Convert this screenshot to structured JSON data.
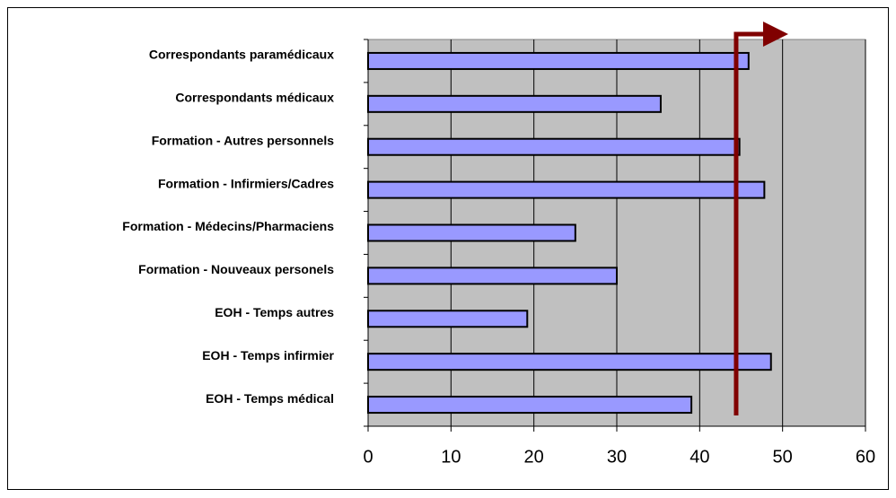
{
  "chart_data": {
    "type": "barh",
    "categories": [
      "Correspondants paramédicaux",
      "Correspondants médicaux",
      "Formation - Autres personnels",
      "Formation - Infirmiers/Cadres",
      "Formation - Médecins/Pharmaciens",
      "Formation - Nouveaux personels",
      "EOH - Temps autres",
      "EOH - Temps infirmier",
      "EOH - Temps médical"
    ],
    "values": [
      45.9,
      35.3,
      44.8,
      47.8,
      25,
      30,
      19.2,
      48.6,
      39
    ],
    "color": "#9999ff",
    "xlim": [
      0,
      60
    ],
    "xticks": [
      0,
      10,
      20,
      30,
      40,
      50,
      60
    ],
    "grid": true,
    "reference_line": {
      "value": 44.4,
      "color": "#800000"
    }
  }
}
